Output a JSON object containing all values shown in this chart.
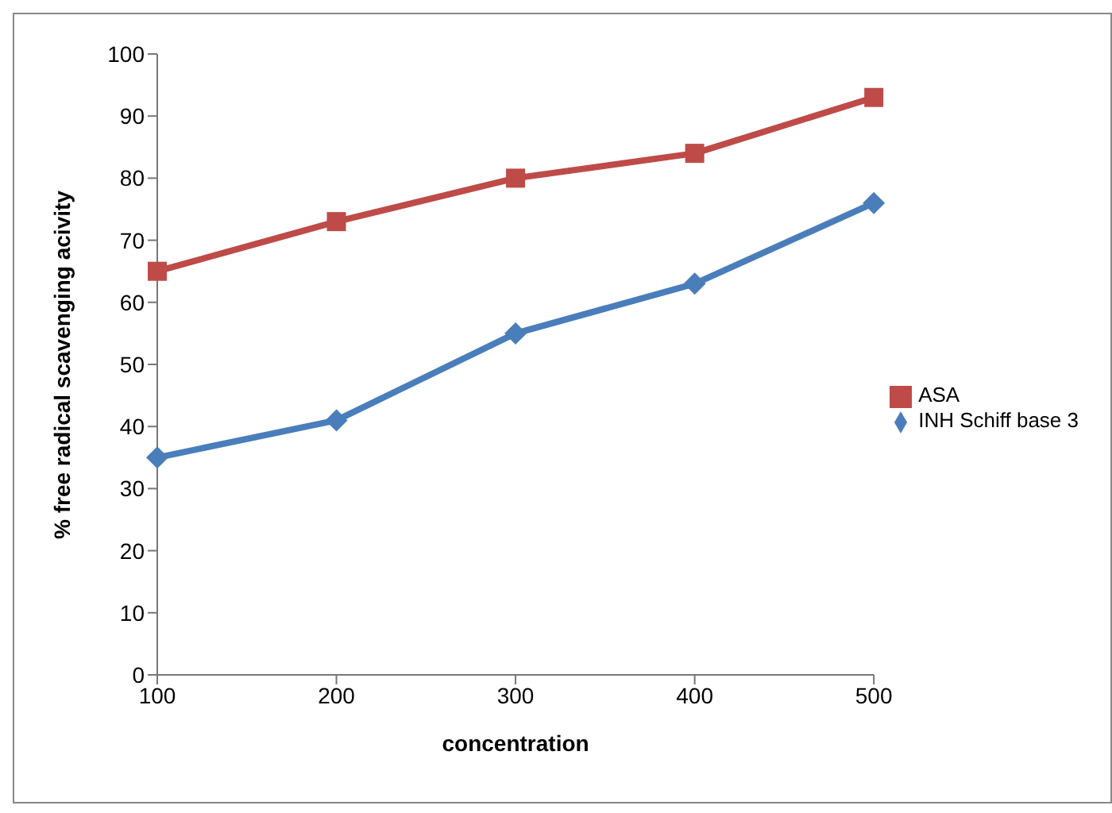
{
  "chart_data": {
    "type": "line",
    "xlabel": "concentration",
    "ylabel": "% free radical scavenging acivity",
    "categories": [
      "100",
      "200",
      "300",
      "400",
      "500"
    ],
    "series": [
      {
        "name": "INH Schiff base 3",
        "color": "#4a7ebb",
        "marker": "diamond",
        "values": [
          35,
          41,
          55,
          63,
          76
        ]
      },
      {
        "name": "ASA",
        "color": "#be4b48",
        "marker": "square",
        "values": [
          65,
          73,
          80,
          84,
          93
        ]
      }
    ],
    "ylim": [
      0,
      100
    ],
    "yticks": [
      0,
      10,
      20,
      30,
      40,
      50,
      60,
      70,
      80,
      90,
      100
    ],
    "grid": false,
    "legend": "right",
    "line_style": "solid"
  }
}
